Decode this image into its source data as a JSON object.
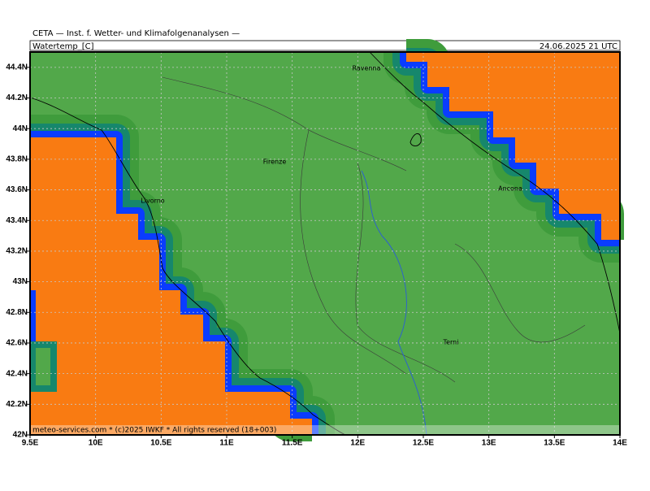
{
  "header": {
    "title": "CETA — Inst. f. Wetter- und Klimafolgenanalysen —",
    "variable": "Watertemp_[C]",
    "valid_time": "24.06.2025 21 UTC"
  },
  "map": {
    "xlim": [
      9.5,
      14
    ],
    "ylim": [
      42,
      44.5
    ],
    "xticks": [
      {
        "value": 9.5,
        "label": "9.5E"
      },
      {
        "value": 10,
        "label": "10E"
      },
      {
        "value": 10.5,
        "label": "10.5E"
      },
      {
        "value": 11,
        "label": "11E"
      },
      {
        "value": 11.5,
        "label": "11.5E"
      },
      {
        "value": 12,
        "label": "12E"
      },
      {
        "value": 12.5,
        "label": "12.5E"
      },
      {
        "value": 13,
        "label": "13E"
      },
      {
        "value": 13.5,
        "label": "13.5E"
      },
      {
        "value": 14,
        "label": "14E"
      }
    ],
    "yticks": [
      {
        "value": 42,
        "label": "42N"
      },
      {
        "value": 42.2,
        "label": "42.2N"
      },
      {
        "value": 42.4,
        "label": "42.4N"
      },
      {
        "value": 42.6,
        "label": "42.6N"
      },
      {
        "value": 42.8,
        "label": "42.8N"
      },
      {
        "value": 43,
        "label": "43N"
      },
      {
        "value": 43.2,
        "label": "43.2N"
      },
      {
        "value": 43.4,
        "label": "43.4N"
      },
      {
        "value": 43.6,
        "label": "43.6N"
      },
      {
        "value": 43.8,
        "label": "43.8N"
      },
      {
        "value": 44,
        "label": "44N"
      },
      {
        "value": 44.2,
        "label": "44.2N"
      },
      {
        "value": 44.4,
        "label": "44.4N"
      }
    ],
    "places": [
      "Ravenna",
      "Firenze",
      "Livorno",
      "Ancona",
      "Terni"
    ]
  },
  "footer": "meteo-services.com * (c)2025 IWKF * All rights reserved (18+003)"
}
